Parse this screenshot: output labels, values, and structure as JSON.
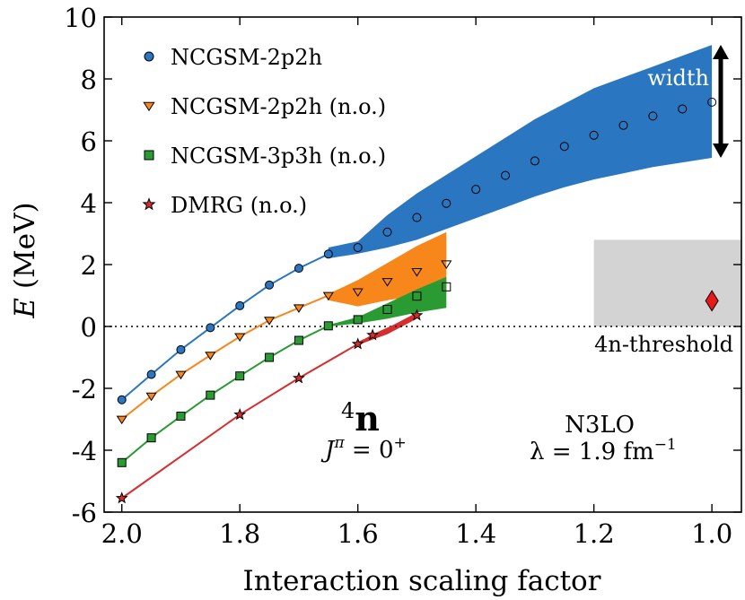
{
  "chart_data": {
    "type": "line",
    "xlabel": "Interaction scaling factor",
    "ylabel_var": "E",
    "ylabel_unit": " (MeV)",
    "xlim": [
      2.03,
      0.95
    ],
    "ylim": [
      -6,
      10
    ],
    "x_reversed": true,
    "grid": false,
    "legend_placement": "top-left",
    "x_ticks": [
      2.0,
      1.8,
      1.6,
      1.4,
      1.2,
      1.0
    ],
    "x_tick_labels": [
      "2.0",
      "1.8",
      "1.6",
      "1.4",
      "1.2",
      "1.0"
    ],
    "y_ticks": [
      -6,
      -4,
      -2,
      0,
      2,
      4,
      6,
      8,
      10
    ],
    "y_tick_labels": [
      "-6",
      "-4",
      "-2",
      "0",
      "2",
      "4",
      "6",
      "8",
      "10"
    ],
    "series": [
      {
        "name": "NCGSM-2p2h",
        "color": "#2a76c0",
        "marker": "circle",
        "x": [
          2.0,
          1.95,
          1.9,
          1.85,
          1.8,
          1.75,
          1.7,
          1.65,
          1.6
        ],
        "y": [
          -2.37,
          -1.55,
          -0.75,
          -0.04,
          0.67,
          1.34,
          1.88,
          2.34,
          2.55
        ]
      },
      {
        "name": "NCGSM-2p2h (n.o.)",
        "color": "#f7871b",
        "marker": "triangle-down",
        "x": [
          2.0,
          1.95,
          1.9,
          1.85,
          1.8,
          1.75,
          1.7,
          1.65
        ],
        "y": [
          -3.0,
          -2.25,
          -1.55,
          -0.93,
          -0.33,
          0.2,
          0.6,
          1.0
        ]
      },
      {
        "name": "NCGSM-3p3h (n.o.)",
        "color": "#2a9b33",
        "marker": "square",
        "x": [
          2.0,
          1.95,
          1.9,
          1.85,
          1.8,
          1.75,
          1.7,
          1.65,
          1.6
        ],
        "y": [
          -4.4,
          -3.6,
          -2.9,
          -2.22,
          -1.6,
          -1.0,
          -0.45,
          0.02,
          0.22
        ]
      },
      {
        "name": "DMRG (n.o.)",
        "color": "#d62e2e",
        "marker": "star",
        "x": [
          2.0,
          1.8,
          1.7,
          1.6,
          1.575,
          1.5
        ],
        "y": [
          -5.55,
          -2.85,
          -1.67,
          -0.57,
          -0.28,
          0.36
        ]
      }
    ],
    "resonance_points": [
      {
        "series": "NCGSM-2p2h",
        "x": [
          1.55,
          1.5,
          1.45,
          1.4,
          1.35,
          1.3,
          1.25,
          1.2,
          1.15,
          1.1,
          1.05,
          1.0
        ],
        "y": [
          3.05,
          3.52,
          3.98,
          4.43,
          4.88,
          5.35,
          5.82,
          6.18,
          6.5,
          6.8,
          7.03,
          7.25
        ]
      },
      {
        "series": "NCGSM-2p2h (n.o.)",
        "x": [
          1.6,
          1.55,
          1.5,
          1.45
        ],
        "y": [
          1.12,
          1.45,
          1.77,
          2.02
        ]
      },
      {
        "series": "NCGSM-3p3h (n.o.)",
        "x": [
          1.55,
          1.5,
          1.45
        ],
        "y": [
          0.55,
          0.98,
          1.28
        ]
      }
    ],
    "bands": [
      {
        "series": "NCGSM-2p2h",
        "x": [
          1.65,
          1.6,
          1.55,
          1.5,
          1.45,
          1.4,
          1.35,
          1.3,
          1.25,
          1.2,
          1.15,
          1.1,
          1.05,
          1.0
        ],
        "upper": [
          2.55,
          2.75,
          3.6,
          4.3,
          4.9,
          5.5,
          6.1,
          6.7,
          7.2,
          7.7,
          8.05,
          8.4,
          8.75,
          9.1
        ],
        "lower": [
          2.2,
          2.35,
          2.55,
          2.8,
          3.15,
          3.5,
          3.85,
          4.2,
          4.5,
          4.75,
          4.95,
          5.15,
          5.3,
          5.45
        ]
      },
      {
        "series": "NCGSM-2p2h (n.o.)",
        "x": [
          1.65,
          1.6,
          1.55,
          1.5,
          1.45
        ],
        "upper": [
          1.05,
          1.5,
          2.05,
          2.6,
          3.05
        ],
        "lower": [
          0.85,
          0.65,
          0.85,
          1.0,
          1.1
        ]
      },
      {
        "series": "NCGSM-3p3h (n.o.)",
        "x": [
          1.65,
          1.6,
          1.55,
          1.5,
          1.45
        ],
        "upper": [
          0.05,
          0.3,
          0.75,
          1.2,
          1.6
        ],
        "lower": [
          0.0,
          0.1,
          0.25,
          0.45,
          0.6
        ]
      },
      {
        "series": "DMRG (n.o.)",
        "x": [
          1.6,
          1.55,
          1.5
        ],
        "upper": [
          -0.5,
          -0.05,
          0.45
        ],
        "lower": [
          -0.6,
          -0.25,
          0.25
        ]
      }
    ],
    "experiment": {
      "box_x": [
        1.2,
        0.95
      ],
      "box_y": [
        0,
        2.8
      ],
      "box_color": "#d3d3d3",
      "point_x": 1.0,
      "point_y": 0.83,
      "point_color": "#e8191b"
    },
    "threshold_y": 0,
    "width_arrow": {
      "x": 0.985,
      "y_top": 9.1,
      "y_bottom": 5.45
    },
    "annotations": {
      "width": "width",
      "threshold": "4n-threshold",
      "nucleus_mass": "4",
      "nucleus_symbol": "n",
      "jpi": "J",
      "jpi_sup": "π",
      "jpi_value": " = 0",
      "jpi_value_sup": "+",
      "interaction": "N3LO",
      "lambda_label": "λ = 1.9 fm",
      "lambda_sup": "−1"
    }
  }
}
